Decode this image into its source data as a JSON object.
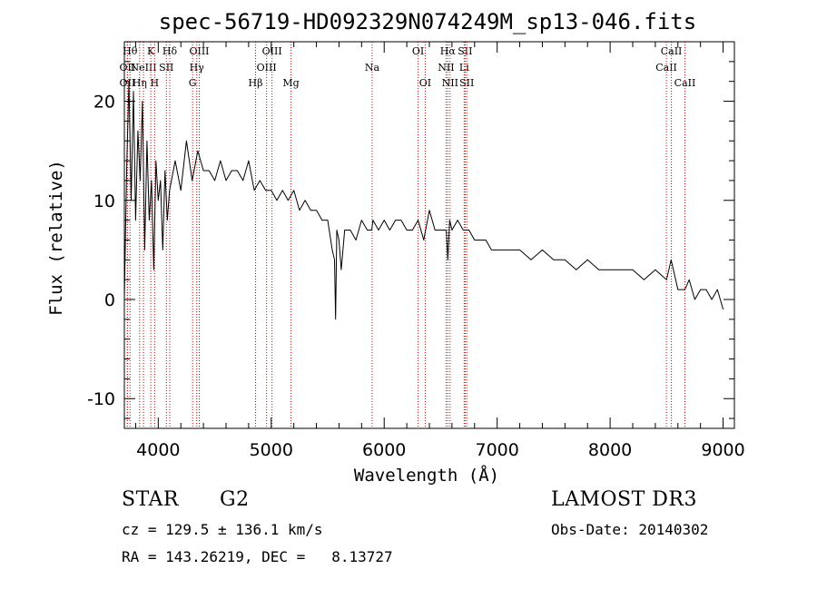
{
  "chart_data": {
    "type": "line",
    "title": "spec-56719-HD092329N074249M_sp13-046.fits",
    "xlabel": "Wavelength (Å)",
    "ylabel": "Flux (relative)",
    "xlim": [
      3700,
      9100
    ],
    "ylim": [
      -13,
      26
    ],
    "xticks": [
      4000,
      5000,
      6000,
      7000,
      8000,
      9000
    ],
    "yticks": [
      -10,
      0,
      10,
      20
    ],
    "series": [
      {
        "name": "flux",
        "x": [
          3700,
          3720,
          3740,
          3760,
          3780,
          3800,
          3820,
          3840,
          3860,
          3880,
          3900,
          3920,
          3940,
          3960,
          3980,
          4000,
          4020,
          4040,
          4060,
          4080,
          4100,
          4150,
          4200,
          4250,
          4300,
          4350,
          4400,
          4450,
          4500,
          4550,
          4600,
          4650,
          4700,
          4750,
          4800,
          4850,
          4900,
          4950,
          5000,
          5050,
          5100,
          5150,
          5200,
          5250,
          5300,
          5350,
          5400,
          5450,
          5500,
          5540,
          5560,
          5570,
          5580,
          5600,
          5620,
          5650,
          5700,
          5750,
          5800,
          5850,
          5890,
          5900,
          5950,
          6000,
          6050,
          6100,
          6150,
          6200,
          6250,
          6300,
          6350,
          6400,
          6450,
          6500,
          6550,
          6563,
          6580,
          6600,
          6650,
          6700,
          6750,
          6800,
          6850,
          6900,
          6950,
          7000,
          7100,
          7200,
          7300,
          7400,
          7500,
          7600,
          7700,
          7800,
          7900,
          8000,
          8100,
          8200,
          8300,
          8400,
          8500,
          8540,
          8600,
          8662,
          8700,
          8750,
          8800,
          8850,
          8900,
          8950,
          9000
        ],
        "values": [
          0,
          13,
          22,
          10,
          21,
          8,
          17,
          12,
          20,
          5,
          16,
          8,
          12,
          3,
          14,
          10,
          12,
          5,
          13,
          8,
          11,
          14,
          11,
          16,
          12,
          15,
          13,
          13,
          12,
          14,
          12,
          13,
          13,
          12,
          14,
          11,
          12,
          11,
          11,
          10,
          11,
          10,
          11,
          9,
          10,
          9,
          9,
          8,
          8,
          5,
          4,
          -2,
          7,
          6,
          3,
          7,
          7,
          6,
          8,
          7,
          7,
          8,
          7,
          8,
          7,
          8,
          8,
          7,
          7,
          8,
          6,
          9,
          7,
          7,
          7,
          4,
          8,
          7,
          8,
          7,
          7,
          6,
          6,
          6,
          5,
          5,
          5,
          5,
          4,
          5,
          4,
          4,
          3,
          4,
          3,
          3,
          3,
          3,
          2,
          3,
          2,
          4,
          1,
          1,
          2,
          0,
          1,
          1,
          0,
          1,
          -1
        ]
      }
    ],
    "line_markers": [
      {
        "wave": 3750,
        "label": "Hθ",
        "row": 0
      },
      {
        "wave": 3727,
        "label": "OII",
        "row": 1
      },
      {
        "wave": 3727,
        "label": "OII",
        "row": 2
      },
      {
        "wave": 3835,
        "label": "Hη",
        "row": 2
      },
      {
        "wave": 3869,
        "label": "NeIII",
        "row": 1
      },
      {
        "wave": 3934,
        "label": "K",
        "row": 0
      },
      {
        "wave": 3968,
        "label": "H",
        "row": 2
      },
      {
        "wave": 4072,
        "label": "SII",
        "row": 1
      },
      {
        "wave": 4102,
        "label": "Hδ",
        "row": 0
      },
      {
        "wave": 4304,
        "label": "G",
        "row": 2
      },
      {
        "wave": 4341,
        "label": "Hγ",
        "row": 1
      },
      {
        "wave": 4363,
        "label": "OIII",
        "row": 0
      },
      {
        "wave": 4861,
        "label": "Hβ",
        "row": 2
      },
      {
        "wave": 4959,
        "label": "OIII",
        "row": 1
      },
      {
        "wave": 5007,
        "label": "OIII",
        "row": 0
      },
      {
        "wave": 5175,
        "label": "Mg",
        "row": 2
      },
      {
        "wave": 5893,
        "label": "Na",
        "row": 1
      },
      {
        "wave": 6300,
        "label": "OI",
        "row": 0
      },
      {
        "wave": 6363,
        "label": "OI",
        "row": 2
      },
      {
        "wave": 6548,
        "label": "NII",
        "row": 1
      },
      {
        "wave": 6563,
        "label": "Hα",
        "row": 0
      },
      {
        "wave": 6583,
        "label": "NII",
        "row": 2
      },
      {
        "wave": 6708,
        "label": "Li",
        "row": 1
      },
      {
        "wave": 6716,
        "label": "SII",
        "row": 0
      },
      {
        "wave": 6731,
        "label": "SII",
        "row": 2
      },
      {
        "wave": 8498,
        "label": "CaII",
        "row": 1
      },
      {
        "wave": 8542,
        "label": "CaII",
        "row": 0
      },
      {
        "wave": 8662,
        "label": "CaII",
        "row": 2
      }
    ],
    "line_marker_color": "#cc0000"
  },
  "info": {
    "class": "STAR",
    "subclass": "G2",
    "survey": "LAMOST DR3",
    "cz": "cz = 129.5 ± 136.1 km/s",
    "obs_date": "Obs-Date: 20140302",
    "coords": "RA = 143.26219, DEC =   8.13727"
  }
}
